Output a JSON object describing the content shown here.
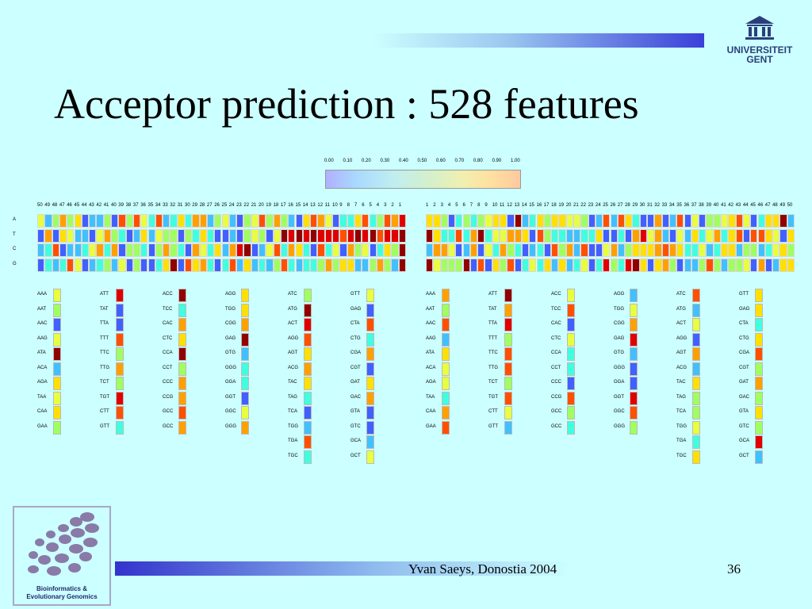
{
  "slide": {
    "title": "Acceptor prediction : 528 features",
    "footer": "Yvan Saeys, Donostia 2004",
    "page_number": "36",
    "logo_univ": {
      "line1": "UNIVERSITEIT",
      "line2": "GENT"
    },
    "logo_bio": {
      "line1": "Bioinformatics &",
      "line2": "Evolutionary Genomics"
    }
  },
  "colorbar": {
    "ticks": [
      "0.00",
      "0.10",
      "0.20",
      "0.30",
      "0.40",
      "0.50",
      "0.60",
      "0.70",
      "0.80",
      "0.90",
      "1.00"
    ]
  },
  "heatmap": {
    "row_labels": [
      "A",
      "T",
      "C",
      "G"
    ],
    "upstream_positions": [
      "50",
      "49",
      "48",
      "47",
      "46",
      "45",
      "44",
      "43",
      "42",
      "41",
      "40",
      "39",
      "38",
      "37",
      "36",
      "35",
      "34",
      "33",
      "32",
      "31",
      "30",
      "29",
      "28",
      "27",
      "26",
      "25",
      "24",
      "23",
      "22",
      "21",
      "20",
      "19",
      "18",
      "17",
      "16",
      "15",
      "14",
      "13",
      "12",
      "11",
      "10",
      "9",
      "8",
      "7",
      "6",
      "5",
      "4",
      "3",
      "2",
      "1"
    ],
    "downstream_positions": [
      "1",
      "2",
      "3",
      "4",
      "5",
      "6",
      "7",
      "8",
      "9",
      "10",
      "11",
      "12",
      "13",
      "14",
      "15",
      "16",
      "17",
      "18",
      "19",
      "20",
      "21",
      "22",
      "23",
      "24",
      "25",
      "26",
      "27",
      "28",
      "29",
      "30",
      "31",
      "32",
      "33",
      "34",
      "35",
      "36",
      "37",
      "38",
      "39",
      "40",
      "41",
      "42",
      "43",
      "44",
      "45",
      "46",
      "47",
      "48",
      "49",
      "50"
    ]
  },
  "trimer_columns": {
    "upstream": [
      [
        "AAA",
        "AAT",
        "AAC",
        "AAG",
        "ATA",
        "ACA",
        "AGA",
        "TAA",
        "CAA",
        "GAA"
      ],
      [
        "ATT",
        "TAT",
        "TTA",
        "TTT",
        "TTC",
        "TTG",
        "TCT",
        "TGT",
        "CTT",
        "GTT"
      ],
      [
        "ACC",
        "TCC",
        "CAC",
        "CTC",
        "CCA",
        "CCT",
        "CCC",
        "CCG",
        "GCC",
        "GCC"
      ],
      [
        "AGG",
        "TGG",
        "CGG",
        "GAG",
        "GTG",
        "GGG",
        "GGA",
        "GGT",
        "GGC",
        "GGG"
      ],
      [
        "ATC",
        "ATG",
        "ACT",
        "AGG",
        "AGT",
        "ACG",
        "TAC",
        "TAG",
        "TCA",
        "TGG",
        "TGA",
        "TGC"
      ],
      [
        "GTT",
        "GAG",
        "CTA",
        "CTG",
        "CGA",
        "CGT",
        "GAT",
        "GAC",
        "GTA",
        "GTC",
        "GCA",
        "GCT"
      ]
    ],
    "downstream": [
      [
        "AAA",
        "AAT",
        "AAC",
        "AAG",
        "ATA",
        "ACA",
        "AGA",
        "TAA",
        "CAA",
        "GAA"
      ],
      [
        "ATT",
        "TAT",
        "TTA",
        "TTT",
        "TTC",
        "TTG",
        "TCT",
        "TGT",
        "CTT",
        "GTT"
      ],
      [
        "ACC",
        "TCC",
        "CAC",
        "CTC",
        "CCA",
        "CCT",
        "CCC",
        "CCG",
        "GCC",
        "GCC"
      ],
      [
        "AGG",
        "TGG",
        "CGG",
        "GAG",
        "GTG",
        "GGG",
        "GGA",
        "GGT",
        "GGC",
        "GGG"
      ],
      [
        "ATC",
        "ATG",
        "ACT",
        "AGG",
        "AGT",
        "ACG",
        "TAC",
        "TAG",
        "TCA",
        "TGG",
        "TGA",
        "TGC"
      ],
      [
        "GTT",
        "GAG",
        "CTA",
        "CTG",
        "CGA",
        "CGT",
        "GAT",
        "GAC",
        "GTA",
        "GTC",
        "GCA",
        "GCT"
      ]
    ]
  },
  "palette": [
    "#4060ff",
    "#40c0ff",
    "#40ffe0",
    "#a0ff60",
    "#e8ff40",
    "#ffe000",
    "#ffa000",
    "#ff5000",
    "#e00000",
    "#900000"
  ]
}
